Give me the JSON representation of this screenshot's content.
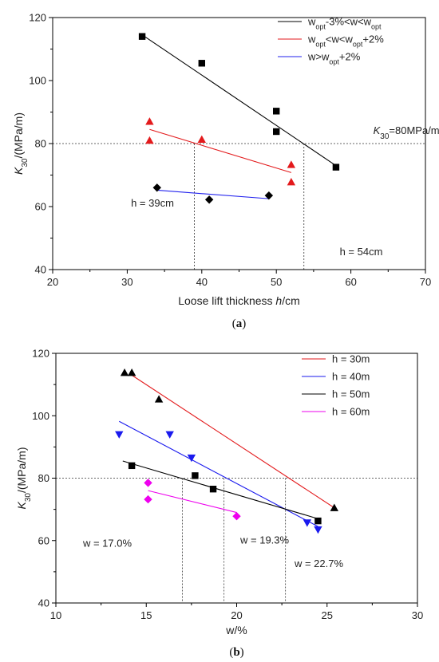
{
  "chart_data": [
    {
      "type": "scatter",
      "panel_label": "(a)",
      "xlabel": "Loose lift thickness h/cm",
      "ylabel": "K30/(MPa/m)",
      "xlim": [
        20,
        70
      ],
      "ylim": [
        40,
        120
      ],
      "xticks": [
        20,
        30,
        40,
        50,
        60,
        70
      ],
      "yticks": [
        40,
        60,
        80,
        100,
        120
      ],
      "legend_position": "top-right",
      "series": [
        {
          "name": "wopt-3%<w<wopt",
          "color": "#000000",
          "marker": "square",
          "points": [
            [
              32,
              114
            ],
            [
              40,
              105.5
            ],
            [
              50,
              90.3
            ],
            [
              50,
              83.8
            ],
            [
              58,
              72.5
            ]
          ],
          "fit": [
            [
              32,
              114.5
            ],
            [
              58,
              73
            ]
          ]
        },
        {
          "name": "wopt<w<wopt+2%",
          "color": "#e31a1c",
          "marker": "triangle-up",
          "points": [
            [
              33,
              87
            ],
            [
              33,
              81
            ],
            [
              40,
              81.3
            ],
            [
              52,
              73.3
            ],
            [
              52,
              67.8
            ]
          ],
          "fit": [
            [
              33,
              84.5
            ],
            [
              52,
              70.8
            ]
          ]
        },
        {
          "name": "w>wopt+2%",
          "color": "#000000",
          "line_color": "#2222ee",
          "marker": "diamond",
          "points": [
            [
              34,
              66
            ],
            [
              41,
              62.2
            ],
            [
              49,
              63.5
            ]
          ],
          "fit": [
            [
              34,
              65.2
            ],
            [
              49,
              62.5
            ]
          ]
        }
      ],
      "reference_lines": {
        "horizontal": [
          80
        ],
        "vertical": [
          39,
          53.7
        ]
      },
      "annotations": [
        {
          "text": "K30=80MPa/m",
          "x": 63,
          "y": 83
        },
        {
          "text": "h = 39cm",
          "x": 30.5,
          "y": 60
        },
        {
          "text": "h = 54cm",
          "x": 58.5,
          "y": 44.5
        }
      ]
    },
    {
      "type": "scatter",
      "panel_label": "(b)",
      "xlabel": "w/%",
      "ylabel": "K30/(MPa/m)",
      "xlim": [
        10,
        30
      ],
      "ylim": [
        40,
        120
      ],
      "xticks": [
        10,
        15,
        20,
        25,
        30
      ],
      "yticks": [
        40,
        60,
        80,
        100,
        120
      ],
      "legend_position": "top-right",
      "series": [
        {
          "name": "h = 30m",
          "color": "#000000",
          "line_color": "#e31a1c",
          "marker": "triangle-up",
          "points": [
            [
              13.8,
              113.8
            ],
            [
              14.2,
              113.8
            ],
            [
              15.7,
              105.3
            ],
            [
              25.4,
              70.5
            ]
          ],
          "fit": [
            [
              14.2,
              113
            ],
            [
              25.4,
              70.5
            ]
          ]
        },
        {
          "name": "h = 40m",
          "color": "#1a1aee",
          "line_color": "#1a1aee",
          "marker": "triangle-down",
          "points": [
            [
              13.5,
              94
            ],
            [
              16.3,
              94
            ],
            [
              17.5,
              86.5
            ],
            [
              23.9,
              65.7
            ],
            [
              24.5,
              63.5
            ]
          ],
          "fit": [
            [
              13.5,
              98.2
            ],
            [
              24.5,
              64.5
            ]
          ]
        },
        {
          "name": "h = 50m",
          "color": "#000000",
          "line_color": "#000000",
          "marker": "square",
          "points": [
            [
              14.2,
              84
            ],
            [
              17.7,
              80.8
            ],
            [
              18.7,
              76.5
            ],
            [
              24.5,
              66.3
            ]
          ],
          "fit": [
            [
              13.7,
              85.5
            ],
            [
              24.5,
              67
            ]
          ]
        },
        {
          "name": "h = 60m",
          "color": "#ee00ee",
          "line_color": "#ee00ee",
          "marker": "diamond",
          "points": [
            [
              15.1,
              78.5
            ],
            [
              15.1,
              73.2
            ],
            [
              20,
              67.8
            ]
          ],
          "fit": [
            [
              15.1,
              76
            ],
            [
              20,
              69
            ]
          ]
        }
      ],
      "reference_lines": {
        "horizontal": [
          80
        ],
        "vertical": [
          17,
          19.3,
          22.7
        ]
      },
      "annotations": [
        {
          "text": "w = 17.0%",
          "x": 11.5,
          "y": 58
        },
        {
          "text": "w = 19.3%",
          "x": 20.2,
          "y": 59
        },
        {
          "text": "w = 22.7%",
          "x": 23.2,
          "y": 51.5
        }
      ]
    }
  ]
}
